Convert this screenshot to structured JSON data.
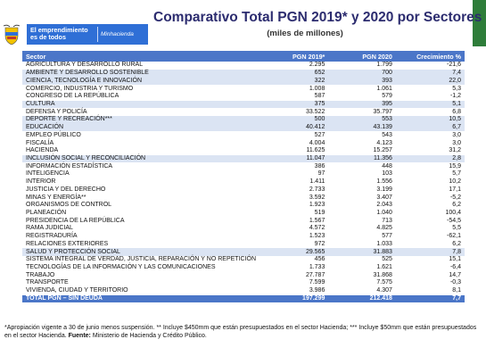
{
  "banner": {
    "line1": "El emprendimiento",
    "line2": "es de todos",
    "ministry": "Minhacienda"
  },
  "title": "Comparativo Total PGN 2019* y 2020 por Sectores",
  "subtitle": "(miles de millones)",
  "table": {
    "headers": [
      "Sector",
      "PGN 2019*",
      "PGN 2020",
      "Crecimiento %"
    ],
    "rows": [
      {
        "sector": "AGRICULTURA Y DESARROLLO RURAL",
        "v2019": "2.295",
        "v2020": "1.799",
        "growth": "-21,6",
        "hl": false
      },
      {
        "sector": "AMBIENTE Y DESARROLLO SOSTENIBLE",
        "v2019": "652",
        "v2020": "700",
        "growth": "7,4",
        "hl": true
      },
      {
        "sector": "CIENCIA, TECNOLOGÍA E INNOVACIÓN",
        "v2019": "322",
        "v2020": "393",
        "growth": "22,0",
        "hl": true
      },
      {
        "sector": "COMERCIO, INDUSTRIA Y TURISMO",
        "v2019": "1.008",
        "v2020": "1.061",
        "growth": "5,3",
        "hl": false
      },
      {
        "sector": "CONGRESO DE LA REPÚBLICA",
        "v2019": "587",
        "v2020": "579",
        "growth": "-1,2",
        "hl": false
      },
      {
        "sector": "CULTURA",
        "v2019": "375",
        "v2020": "395",
        "growth": "5,1",
        "hl": true
      },
      {
        "sector": "DEFENSA Y POLICÍA",
        "v2019": "33.522",
        "v2020": "35.797",
        "growth": "6,8",
        "hl": false
      },
      {
        "sector": "DEPORTE Y RECREACIÓN***",
        "v2019": "500",
        "v2020": "553",
        "growth": "10,5",
        "hl": true
      },
      {
        "sector": "EDUCACIÓN",
        "v2019": "40.412",
        "v2020": "43.139",
        "growth": "6,7",
        "hl": true
      },
      {
        "sector": "EMPLEO PÚBLICO",
        "v2019": "527",
        "v2020": "543",
        "growth": "3,0",
        "hl": false
      },
      {
        "sector": "FISCALÍA",
        "v2019": "4.004",
        "v2020": "4.123",
        "growth": "3,0",
        "hl": false
      },
      {
        "sector": "HACIENDA",
        "v2019": "11.625",
        "v2020": "15.257",
        "growth": "31,2",
        "hl": false
      },
      {
        "sector": "INCLUSIÓN SOCIAL Y RECONCILIACIÓN",
        "v2019": "11.047",
        "v2020": "11.356",
        "growth": "2,8",
        "hl": true
      },
      {
        "sector": "INFORMACIÓN ESTADÍSTICA",
        "v2019": "386",
        "v2020": "448",
        "growth": "15,9",
        "hl": false
      },
      {
        "sector": "INTELIGENCIA",
        "v2019": "97",
        "v2020": "103",
        "growth": "5,7",
        "hl": false
      },
      {
        "sector": "INTERIOR",
        "v2019": "1.411",
        "v2020": "1.556",
        "growth": "10,2",
        "hl": false
      },
      {
        "sector": "JUSTICIA Y DEL DERECHO",
        "v2019": "2.733",
        "v2020": "3.199",
        "growth": "17,1",
        "hl": false
      },
      {
        "sector": "MINAS Y ENERGÍA**",
        "v2019": "3.592",
        "v2020": "3.407",
        "growth": "-5,2",
        "hl": false
      },
      {
        "sector": "ORGANISMOS DE CONTROL",
        "v2019": "1.923",
        "v2020": "2.043",
        "growth": "6,2",
        "hl": false
      },
      {
        "sector": "PLANEACIÓN",
        "v2019": "519",
        "v2020": "1.040",
        "growth": "100,4",
        "hl": false
      },
      {
        "sector": "PRESIDENCIA DE LA REPÚBLICA",
        "v2019": "1.567",
        "v2020": "713",
        "growth": "-54,5",
        "hl": false
      },
      {
        "sector": "RAMA JUDICIAL",
        "v2019": "4.572",
        "v2020": "4.825",
        "growth": "5,5",
        "hl": false
      },
      {
        "sector": "REGISTRADURÍA",
        "v2019": "1.523",
        "v2020": "577",
        "growth": "-62,1",
        "hl": false
      },
      {
        "sector": "RELACIONES EXTERIORES",
        "v2019": "972",
        "v2020": "1.033",
        "growth": "6,2",
        "hl": false
      },
      {
        "sector": "SALUD Y PROTECCIÓN SOCIAL",
        "v2019": "29.565",
        "v2020": "31.883",
        "growth": "7,8",
        "hl": true
      },
      {
        "sector": "SISTEMA INTEGRAL DE VERDAD, JUSTICIA, REPARACIÓN Y NO REPETICIÓN",
        "v2019": "456",
        "v2020": "525",
        "growth": "15,1",
        "hl": false
      },
      {
        "sector": "TECNOLOGÍAS DE LA INFORMACIÓN Y LAS COMUNICACIONES",
        "v2019": "1.733",
        "v2020": "1.621",
        "growth": "-6,4",
        "hl": false
      },
      {
        "sector": "TRABAJO",
        "v2019": "27.787",
        "v2020": "31.868",
        "growth": "14,7",
        "hl": false
      },
      {
        "sector": "TRANSPORTE",
        "v2019": "7.599",
        "v2020": "7.575",
        "growth": "-0,3",
        "hl": false
      },
      {
        "sector": "VIVIENDA, CIUDAD Y TERRITORIO",
        "v2019": "3.986",
        "v2020": "4.307",
        "growth": "8,1",
        "hl": false
      }
    ],
    "total": {
      "sector": "TOTAL PGN – SIN DEUDA",
      "v2019": "197.299",
      "v2020": "212.418",
      "growth": "7,7"
    }
  },
  "notes": {
    "text1": "*Apropiación vigente a 30 de junio menos suspensión. ** Incluye $450mm que están presupuestados en el sector Hacienda; *** Incluye $50mm que están presupuestados en el sector Hacienda.",
    "source_label": "Fuente:",
    "source_text": " Ministerio de Hacienda y Crédito Público."
  },
  "colors": {
    "header": "#4b76c8",
    "highlight": "#dbe4f3",
    "banner": "#2f6fd6",
    "title": "#2c2c6f",
    "green": "#2e7d3a"
  },
  "icons": {
    "crest": "colombia-coat-of-arms-icon"
  }
}
